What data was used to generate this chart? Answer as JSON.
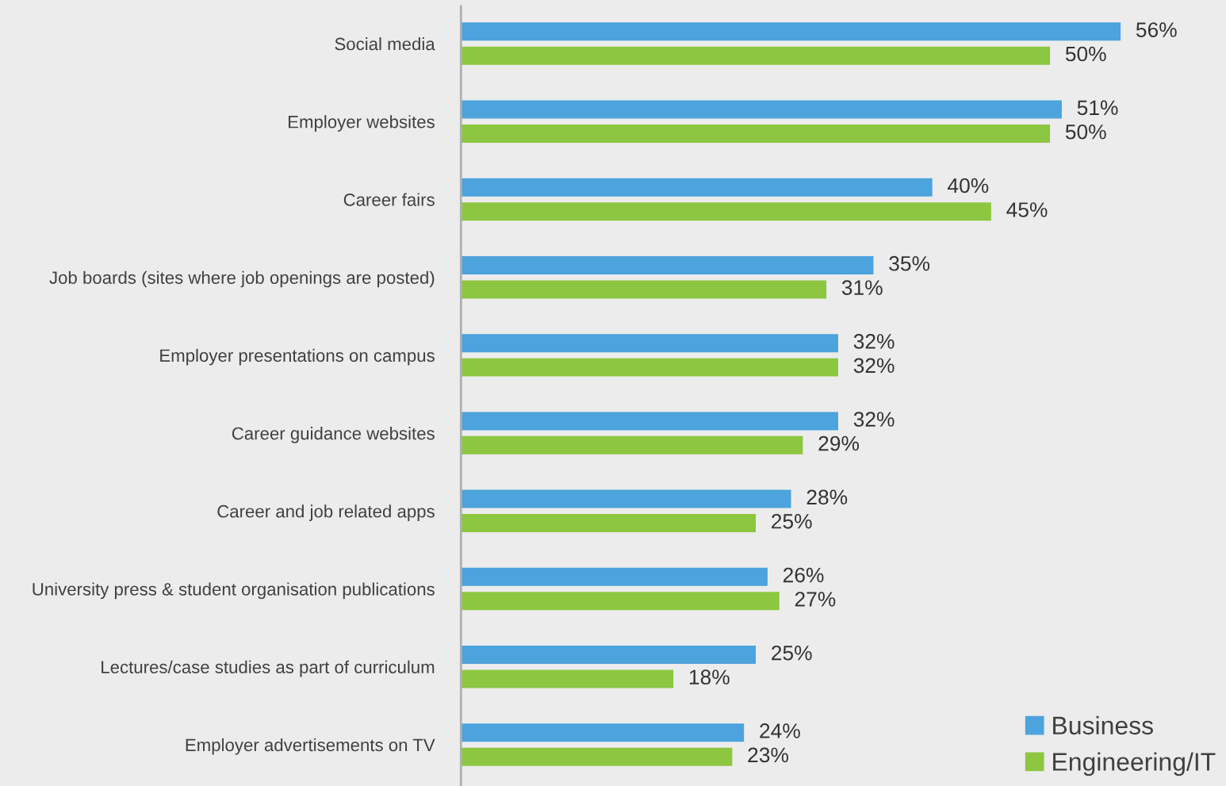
{
  "chart_data": {
    "type": "bar",
    "orientation": "horizontal",
    "categories": [
      "Social media",
      "Employer websites",
      "Career fairs",
      "Job boards (sites where job openings are posted)",
      "Employer presentations on campus",
      "Career guidance websites",
      "Career and job related apps",
      "University press & student organisation publications",
      "Lectures/case studies as part of curriculum",
      "Employer advertisements on TV"
    ],
    "series": [
      {
        "name": "Business",
        "color": "#4da3dc",
        "values": [
          56,
          51,
          40,
          35,
          32,
          32,
          28,
          26,
          25,
          24
        ],
        "value_labels": [
          "56%",
          "51%",
          "40%",
          "35%",
          "32%",
          "32%",
          "28%",
          "26%",
          "25%",
          "24%"
        ]
      },
      {
        "name": "Engineering/IT",
        "color": "#8dc641",
        "values": [
          50,
          50,
          45,
          31,
          32,
          29,
          25,
          27,
          18,
          23
        ],
        "value_labels": [
          "50%",
          "50%",
          "45%",
          "31%",
          "32%",
          "29%",
          "25%",
          "27%",
          "18%",
          "23%"
        ]
      }
    ],
    "xlim": [
      0,
      65
    ],
    "tick_labels": "y",
    "grid": false,
    "legend": "bottom right"
  }
}
